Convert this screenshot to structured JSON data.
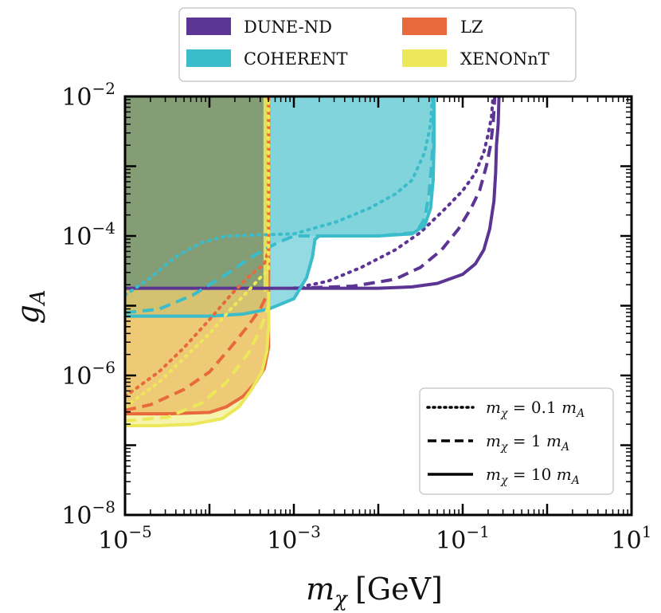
{
  "chart_data": {
    "type": "area",
    "title": "",
    "xlabel_var": "m",
    "xlabel_sub": "χ",
    "xlabel_unit": "[GeV]",
    "ylabel_var": "g",
    "ylabel_sub": "A",
    "x_scale": "log",
    "y_scale": "log",
    "xlim_log10": [
      -5,
      1
    ],
    "ylim_log10": [
      -8,
      -2
    ],
    "x_ticks": [
      {
        "base": "10",
        "exp": "−5",
        "log10": -5
      },
      {
        "base": "10",
        "exp": "−3",
        "log10": -3
      },
      {
        "base": "10",
        "exp": "−1",
        "log10": -1
      },
      {
        "base": "10",
        "exp": "1",
        "log10": 1
      }
    ],
    "y_ticks": [
      {
        "base": "10",
        "exp": "−8",
        "log10": -8
      },
      {
        "base": "10",
        "exp": "−6",
        "log10": -6
      },
      {
        "base": "10",
        "exp": "−4",
        "log10": -4
      },
      {
        "base": "10",
        "exp": "−2",
        "log10": -2
      }
    ],
    "legend_experiments": [
      {
        "label": "DUNE-ND",
        "color": "#5b3494"
      },
      {
        "label": "LZ",
        "color": "#e8693b"
      },
      {
        "label": "COHERENT",
        "color": "#3bbcca"
      },
      {
        "label": "XENONnT",
        "color": "#ece85a"
      }
    ],
    "legend_experiments_position": "above-plot",
    "legend_styles": [
      {
        "text": "m",
        "sub": "χ",
        "rest": " = 0.1 ",
        "var2": "m",
        "sub2": "A",
        "dash": "dotted"
      },
      {
        "text": "m",
        "sub": "χ",
        "rest": " = 1 ",
        "var2": "m",
        "sub2": "A",
        "dash": "dashed"
      },
      {
        "text": "m",
        "sub": "χ",
        "rest": " = 10 ",
        "var2": "m",
        "sub2": "A",
        "dash": "solid"
      }
    ],
    "legend_styles_position": "bottom-right",
    "series": [
      {
        "name": "DUNE-ND",
        "style": "solid",
        "color": "#5b3494",
        "fill": false,
        "points": [
          [
            -5,
            -4.75
          ],
          [
            -3,
            -4.75
          ],
          [
            -2,
            -4.75
          ],
          [
            -1.6,
            -4.73
          ],
          [
            -1.3,
            -4.68
          ],
          [
            -1,
            -4.55
          ],
          [
            -0.85,
            -4.4
          ],
          [
            -0.75,
            -4.2
          ],
          [
            -0.68,
            -3.9
          ],
          [
            -0.63,
            -3.5
          ],
          [
            -0.61,
            -3.1
          ],
          [
            -0.6,
            -2.7
          ],
          [
            -0.58,
            -2.4
          ],
          [
            -0.57,
            -2.0
          ]
        ]
      },
      {
        "name": "DUNE-ND",
        "style": "dashed",
        "color": "#5b3494",
        "fill": false,
        "points": [
          [
            -3,
            -4.75
          ],
          [
            -2.3,
            -4.72
          ],
          [
            -1.8,
            -4.62
          ],
          [
            -1.5,
            -4.45
          ],
          [
            -1.25,
            -4.2
          ],
          [
            -1.05,
            -3.9
          ],
          [
            -0.9,
            -3.6
          ],
          [
            -0.8,
            -3.35
          ],
          [
            -0.72,
            -3.0
          ],
          [
            -0.67,
            -2.7
          ],
          [
            -0.64,
            -2.4
          ],
          [
            -0.62,
            -2.0
          ]
        ]
      },
      {
        "name": "DUNE-ND",
        "style": "dotted",
        "color": "#5b3494",
        "fill": false,
        "points": [
          [
            -3,
            -4.75
          ],
          [
            -2.6,
            -4.65
          ],
          [
            -2.2,
            -4.45
          ],
          [
            -1.8,
            -4.2
          ],
          [
            -1.5,
            -3.95
          ],
          [
            -1.2,
            -3.6
          ],
          [
            -1.0,
            -3.35
          ],
          [
            -0.85,
            -3.1
          ],
          [
            -0.75,
            -2.8
          ],
          [
            -0.7,
            -2.55
          ],
          [
            -0.66,
            -2.3
          ],
          [
            -0.64,
            -2.0
          ]
        ]
      },
      {
        "name": "COHERENT",
        "style": "solid",
        "color": "#3bbcca",
        "fill": true,
        "fill_color": "#3bbcca",
        "fill_opacity": 0.55,
        "points": [
          [
            -5,
            -5.15
          ],
          [
            -4,
            -5.15
          ],
          [
            -3.6,
            -5.12
          ],
          [
            -3.3,
            -5.05
          ],
          [
            -3.0,
            -4.9
          ],
          [
            -2.85,
            -4.6
          ],
          [
            -2.78,
            -4.3
          ],
          [
            -2.75,
            -4.05
          ],
          [
            -2.7,
            -4.0
          ],
          [
            -2,
            -4.0
          ],
          [
            -1.6,
            -3.97
          ],
          [
            -1.45,
            -3.85
          ],
          [
            -1.38,
            -3.6
          ],
          [
            -1.35,
            -3.2
          ],
          [
            -1.34,
            -2.7
          ],
          [
            -1.34,
            -2.0
          ]
        ]
      },
      {
        "name": "COHERENT",
        "style": "dashed",
        "color": "#3bbcca",
        "fill": true,
        "fill_color": "#3bbcca",
        "fill_opacity": 0.2,
        "points": [
          [
            -5,
            -5.1
          ],
          [
            -4.6,
            -5.05
          ],
          [
            -4.2,
            -4.85
          ],
          [
            -3.8,
            -4.55
          ],
          [
            -3.5,
            -4.3
          ],
          [
            -3.2,
            -4.1
          ],
          [
            -3,
            -4.0
          ],
          [
            -2.0,
            -4.0
          ],
          [
            -1.55,
            -3.95
          ],
          [
            -1.45,
            -3.75
          ],
          [
            -1.4,
            -3.4
          ],
          [
            -1.37,
            -3.0
          ],
          [
            -1.35,
            -2.6
          ],
          [
            -1.35,
            -2.0
          ]
        ]
      },
      {
        "name": "COHERENT",
        "style": "dotted",
        "color": "#3bbcca",
        "fill": false,
        "points": [
          [
            -5,
            -4.85
          ],
          [
            -4.7,
            -4.6
          ],
          [
            -4.4,
            -4.3
          ],
          [
            -4.1,
            -4.1
          ],
          [
            -3.8,
            -4.0
          ],
          [
            -3,
            -3.97
          ],
          [
            -2.5,
            -3.8
          ],
          [
            -2.1,
            -3.6
          ],
          [
            -1.8,
            -3.4
          ],
          [
            -1.6,
            -3.2
          ],
          [
            -1.45,
            -2.8
          ],
          [
            -1.38,
            -2.4
          ],
          [
            -1.36,
            -2.0
          ]
        ]
      },
      {
        "name": "LZ",
        "style": "solid",
        "color": "#e8693b",
        "fill": true,
        "fill_color": "#e8693b",
        "fill_opacity": 0.55,
        "points": [
          [
            -5,
            -6.55
          ],
          [
            -4.5,
            -6.55
          ],
          [
            -4.0,
            -6.53
          ],
          [
            -3.8,
            -6.45
          ],
          [
            -3.6,
            -6.3
          ],
          [
            -3.45,
            -6.1
          ],
          [
            -3.35,
            -5.9
          ],
          [
            -3.3,
            -5.6
          ],
          [
            -3.3,
            -5.2
          ],
          [
            -3.3,
            -4.8
          ]
        ]
      },
      {
        "name": "LZ",
        "style": "dashed",
        "color": "#e8693b",
        "fill": false,
        "points": [
          [
            -5,
            -6.5
          ],
          [
            -4.7,
            -6.42
          ],
          [
            -4.3,
            -6.2
          ],
          [
            -4.0,
            -5.95
          ],
          [
            -3.75,
            -5.6
          ],
          [
            -3.55,
            -5.3
          ],
          [
            -3.4,
            -5.05
          ],
          [
            -3.3,
            -4.8
          ]
        ]
      },
      {
        "name": "LZ",
        "style": "dotted",
        "color": "#e8693b",
        "fill": false,
        "points": [
          [
            -5,
            -6.3
          ],
          [
            -4.6,
            -5.95
          ],
          [
            -4.3,
            -5.6
          ],
          [
            -4.0,
            -5.2
          ],
          [
            -3.75,
            -4.85
          ],
          [
            -3.55,
            -4.6
          ],
          [
            -3.35,
            -4.4
          ],
          [
            -3.3,
            -4.2
          ],
          [
            -3.3,
            -2.0
          ]
        ]
      },
      {
        "name": "XENONnT",
        "style": "solid",
        "color": "#ece85a",
        "fill": true,
        "fill_color": "#ece85a",
        "fill_opacity": 0.5,
        "points": [
          [
            -5,
            -6.72
          ],
          [
            -4.6,
            -6.72
          ],
          [
            -4.2,
            -6.7
          ],
          [
            -3.85,
            -6.62
          ],
          [
            -3.65,
            -6.45
          ],
          [
            -3.5,
            -6.2
          ],
          [
            -3.38,
            -5.95
          ],
          [
            -3.32,
            -5.65
          ],
          [
            -3.3,
            -5.3
          ],
          [
            -3.3,
            -4.8
          ]
        ]
      },
      {
        "name": "XENONnT",
        "style": "dashed",
        "color": "#ece85a",
        "fill": false,
        "points": [
          [
            -5,
            -6.65
          ],
          [
            -4.5,
            -6.6
          ],
          [
            -4.1,
            -6.4
          ],
          [
            -3.8,
            -6.1
          ],
          [
            -3.55,
            -5.7
          ],
          [
            -3.4,
            -5.35
          ],
          [
            -3.3,
            -5.0
          ],
          [
            -3.3,
            -4.8
          ]
        ]
      },
      {
        "name": "XENONnT",
        "style": "dotted",
        "color": "#ece85a",
        "fill": false,
        "points": [
          [
            -5,
            -6.45
          ],
          [
            -4.6,
            -6.1
          ],
          [
            -4.3,
            -5.75
          ],
          [
            -4.0,
            -5.4
          ],
          [
            -3.75,
            -5.05
          ],
          [
            -3.55,
            -4.8
          ],
          [
            -3.4,
            -4.6
          ],
          [
            -3.3,
            -4.5
          ],
          [
            -3.3,
            -2.0
          ]
        ]
      }
    ],
    "bands": [
      {
        "name": "COHERENT-DUNE overlap region",
        "x_log10": [
          -5,
          -3.3
        ],
        "y_log10": [
          -4.75,
          -2
        ],
        "color": "#5b8a79",
        "opacity": 0.65
      },
      {
        "name": "LZ vertical band",
        "x_log10": [
          -3.34,
          -3.28
        ],
        "y_log10": [
          -4.8,
          -2
        ],
        "color": "#e8693b",
        "opacity": 0.9
      },
      {
        "name": "XENONnT vertical band",
        "x_log10": [
          -3.36,
          -3.3
        ],
        "y_log10": [
          -4.8,
          -2
        ],
        "color": "#ece85a",
        "opacity": 0.9
      }
    ]
  }
}
